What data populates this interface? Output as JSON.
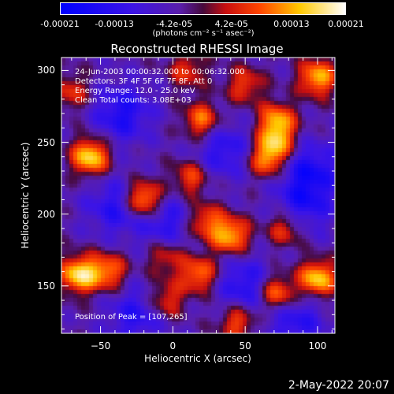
{
  "colorbar": {
    "tick_labels": [
      "-0.00021",
      "-0.00013",
      "-4.2e-05",
      "4.2e-05",
      "0.00013",
      "0.00021"
    ],
    "tick_values": [
      -0.00021,
      -0.00013,
      -4.2e-05,
      4.2e-05,
      0.00013,
      0.00021
    ],
    "units": "(photons cm⁻² s⁻¹ asec⁻²)",
    "range": [
      -0.00021,
      0.00021
    ]
  },
  "chart_data": {
    "type": "heatmap",
    "title": "Reconstructed RHESSI Image",
    "xlabel": "Heliocentric X (arcsec)",
    "ylabel": "Heliocentric Y (arcsec)",
    "xlim": [
      -77,
      112
    ],
    "ylim": [
      117,
      309
    ],
    "xticks": [
      -50,
      0,
      50,
      100
    ],
    "yticks": [
      150,
      200,
      250,
      300
    ],
    "xtick_labels": [
      "−50",
      "0",
      "50",
      "100"
    ],
    "ytick_labels": [
      "150",
      "200",
      "250",
      "300"
    ],
    "peak": [
      107,
      265
    ],
    "bright_sources": [
      {
        "x": -57,
        "y": 240,
        "value": 0.00021
      },
      {
        "x": -20,
        "y": 210,
        "value": 0.00021
      },
      {
        "x": -65,
        "y": 158,
        "value": 0.00021
      },
      {
        "x": -45,
        "y": 160,
        "value": 0.00015
      },
      {
        "x": 20,
        "y": 265,
        "value": 0.00015
      },
      {
        "x": 12,
        "y": 225,
        "value": 0.00012
      },
      {
        "x": 22,
        "y": 195,
        "value": 0.00013
      },
      {
        "x": 40,
        "y": 185,
        "value": 0.00018
      },
      {
        "x": 65,
        "y": 238,
        "value": 0.00015
      },
      {
        "x": 72,
        "y": 250,
        "value": 0.00014
      },
      {
        "x": 72,
        "y": 265,
        "value": 0.00016
      },
      {
        "x": 100,
        "y": 295,
        "value": 0.00018
      },
      {
        "x": 78,
        "y": 190,
        "value": 0.00012
      },
      {
        "x": 72,
        "y": 145,
        "value": 0.00017
      },
      {
        "x": 100,
        "y": 155,
        "value": 0.0002
      },
      {
        "x": 18,
        "y": 158,
        "value": 0.00015
      },
      {
        "x": -5,
        "y": 140,
        "value": 0.00012
      },
      {
        "x": 45,
        "y": 125,
        "value": 0.00013
      },
      {
        "x": 10,
        "y": 300,
        "value": 0.0001
      },
      {
        "x": -70,
        "y": 285,
        "value": 0.0001
      },
      {
        "x": -5,
        "y": 170,
        "value": 0.0001
      },
      {
        "x": 50,
        "y": 290,
        "value": 0.00011
      }
    ],
    "dark_sources": [
      {
        "x": -35,
        "y": 270,
        "value": -0.00012
      },
      {
        "x": 35,
        "y": 245,
        "value": -0.0001
      },
      {
        "x": 95,
        "y": 230,
        "value": -0.00012
      },
      {
        "x": -5,
        "y": 195,
        "value": -0.0001
      },
      {
        "x": 90,
        "y": 205,
        "value": -0.0001
      },
      {
        "x": -40,
        "y": 205,
        "value": -0.0001
      },
      {
        "x": 50,
        "y": 150,
        "value": -0.00011
      },
      {
        "x": -25,
        "y": 130,
        "value": -0.0001
      },
      {
        "x": 85,
        "y": 125,
        "value": -0.0001
      }
    ]
  },
  "info": {
    "line1": "24-Jun-2003 00:00:32.000 to 00:06:32.000",
    "line2": "Detectors: 3F 4F 5F 6F 7F 8F, Att 0",
    "line3": "Energy Range: 12.0 - 25.0 keV",
    "line4": "Clean     Total counts: 3.08E+03"
  },
  "peak_label": "Position of Peak = [107,265]",
  "timestamp": "2-May-2022 20:07"
}
